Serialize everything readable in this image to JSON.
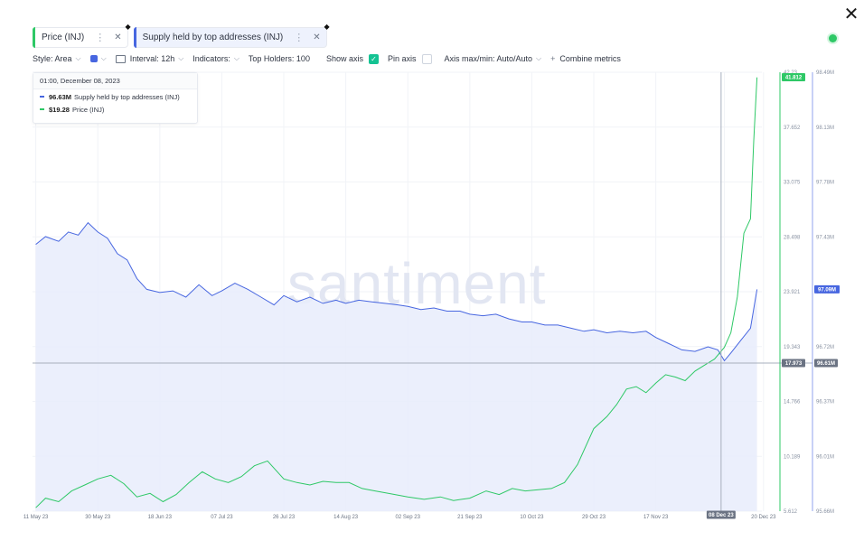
{
  "header": {
    "close_icon": "close-icon",
    "status_color": "#2ec866"
  },
  "metrics": [
    {
      "label": "Price (INJ)",
      "color": "#2ec866"
    },
    {
      "label": "Supply held by top addresses (INJ)",
      "color": "#4766e0"
    }
  ],
  "toolbar": {
    "style_label": "Style: Area",
    "color_swatch": "#4766e0",
    "interval_label": "Interval: 12h",
    "indicators_label": "Indicators:",
    "top_holders_label": "Top Holders: 100",
    "show_axis_label": "Show axis",
    "show_axis_checked": true,
    "pin_axis_label": "Pin axis",
    "pin_axis_checked": false,
    "axis_maxmin_label": "Axis max/min: Auto/Auto",
    "combine_label": "Combine metrics"
  },
  "tooltip": {
    "date": "01:00, December 08, 2023",
    "rows": [
      {
        "value": "96.63M",
        "name": "Supply held by top addresses (INJ)",
        "color": "#4766e0"
      },
      {
        "value": "$19.28",
        "name": "Price (INJ)",
        "color": "#2ec866"
      }
    ]
  },
  "watermark": "santiment",
  "chart_data": {
    "type": "line",
    "x_tick_labels": [
      "11 May 23",
      "30 May 23",
      "18 Jun 23",
      "07 Jul 23",
      "26 Jul 23",
      "14 Aug 23",
      "02 Sep 23",
      "21 Sep 23",
      "10 Oct 23",
      "29 Oct 23",
      "17 Nov 23",
      "08 Dec 23",
      "20 Dec 23"
    ],
    "series": [
      {
        "name": "Supply held by top addresses (INJ)",
        "axis": "right",
        "style": "area",
        "color": "#4766e0",
        "fill": "#e8ecfb",
        "y_ticks": [
          "98.49M",
          "98.13M",
          "97.78M",
          "97.43M",
          "97.09M",
          "96.72M",
          "96.37M",
          "96.01M",
          "95.66M"
        ],
        "ylim": [
          95.66,
          98.49
        ],
        "current_value_label": "97.09M",
        "x": [
          "2023-05-11",
          "2023-05-14",
          "2023-05-18",
          "2023-05-21",
          "2023-05-24",
          "2023-05-27",
          "2023-05-30",
          "2023-06-02",
          "2023-06-05",
          "2023-06-08",
          "2023-06-11",
          "2023-06-14",
          "2023-06-18",
          "2023-06-22",
          "2023-06-26",
          "2023-06-30",
          "2023-07-04",
          "2023-07-07",
          "2023-07-11",
          "2023-07-15",
          "2023-07-19",
          "2023-07-23",
          "2023-07-26",
          "2023-07-30",
          "2023-08-03",
          "2023-08-07",
          "2023-08-11",
          "2023-08-14",
          "2023-08-18",
          "2023-08-22",
          "2023-08-26",
          "2023-08-30",
          "2023-09-02",
          "2023-09-06",
          "2023-09-10",
          "2023-09-14",
          "2023-09-18",
          "2023-09-21",
          "2023-09-25",
          "2023-09-29",
          "2023-10-03",
          "2023-10-07",
          "2023-10-10",
          "2023-10-14",
          "2023-10-18",
          "2023-10-22",
          "2023-10-26",
          "2023-10-29",
          "2023-11-02",
          "2023-11-06",
          "2023-11-10",
          "2023-11-14",
          "2023-11-17",
          "2023-11-21",
          "2023-11-25",
          "2023-11-29",
          "2023-12-03",
          "2023-12-06",
          "2023-12-08",
          "2023-12-10",
          "2023-12-13",
          "2023-12-16",
          "2023-12-18"
        ],
        "values": [
          97.38,
          97.43,
          97.4,
          97.46,
          97.44,
          97.52,
          97.46,
          97.42,
          97.32,
          97.28,
          97.16,
          97.09,
          97.07,
          97.08,
          97.04,
          97.12,
          97.05,
          97.08,
          97.13,
          97.09,
          97.04,
          96.99,
          97.05,
          97.01,
          97.04,
          97.0,
          97.02,
          97.0,
          97.02,
          97.01,
          97.0,
          96.99,
          96.98,
          96.96,
          96.97,
          96.95,
          96.95,
          96.93,
          96.92,
          96.93,
          96.9,
          96.88,
          96.88,
          96.86,
          96.86,
          96.84,
          96.82,
          96.83,
          96.81,
          96.82,
          96.81,
          96.82,
          96.78,
          96.74,
          96.7,
          96.69,
          96.72,
          96.7,
          96.63,
          96.68,
          96.76,
          96.84,
          97.09
        ]
      },
      {
        "name": "Price (INJ)",
        "axis": "left-inner",
        "style": "line",
        "color": "#2ec866",
        "y_ticks": [
          "42.23",
          "37.652",
          "33.075",
          "28.498",
          "23.921",
          "19.343",
          "14.766",
          "10.189",
          "5.612"
        ],
        "ylim": [
          5.612,
          42.23
        ],
        "current_value_label": "41.812",
        "crosshair_value_label": "17.973",
        "x": [
          "2023-05-11",
          "2023-05-14",
          "2023-05-18",
          "2023-05-22",
          "2023-05-26",
          "2023-05-30",
          "2023-06-03",
          "2023-06-07",
          "2023-06-11",
          "2023-06-15",
          "2023-06-19",
          "2023-06-23",
          "2023-06-27",
          "2023-07-01",
          "2023-07-05",
          "2023-07-09",
          "2023-07-13",
          "2023-07-17",
          "2023-07-21",
          "2023-07-26",
          "2023-07-30",
          "2023-08-03",
          "2023-08-07",
          "2023-08-11",
          "2023-08-15",
          "2023-08-19",
          "2023-08-23",
          "2023-08-27",
          "2023-09-02",
          "2023-09-07",
          "2023-09-12",
          "2023-09-16",
          "2023-09-21",
          "2023-09-26",
          "2023-09-30",
          "2023-10-04",
          "2023-10-08",
          "2023-10-12",
          "2023-10-16",
          "2023-10-20",
          "2023-10-24",
          "2023-10-29",
          "2023-11-02",
          "2023-11-05",
          "2023-11-08",
          "2023-11-11",
          "2023-11-14",
          "2023-11-17",
          "2023-11-20",
          "2023-11-23",
          "2023-11-26",
          "2023-11-29",
          "2023-12-02",
          "2023-12-05",
          "2023-12-08",
          "2023-12-10",
          "2023-12-12",
          "2023-12-14",
          "2023-12-16",
          "2023-12-17",
          "2023-12-18"
        ],
        "values": [
          5.9,
          6.7,
          6.4,
          7.3,
          7.8,
          8.3,
          8.6,
          7.9,
          6.8,
          7.1,
          6.4,
          7.0,
          8.0,
          8.9,
          8.3,
          8.0,
          8.5,
          9.4,
          9.8,
          8.3,
          8.0,
          7.8,
          8.1,
          8.0,
          8.0,
          7.5,
          7.3,
          7.1,
          6.8,
          6.6,
          6.8,
          6.5,
          6.7,
          7.3,
          7.0,
          7.5,
          7.3,
          7.4,
          7.5,
          8.0,
          9.5,
          12.5,
          13.5,
          14.5,
          15.8,
          16.0,
          15.5,
          16.3,
          17.0,
          16.8,
          16.5,
          17.3,
          17.8,
          18.3,
          19.28,
          20.5,
          23.5,
          28.8,
          30.0,
          36.5,
          41.8
        ]
      }
    ],
    "crosshair_x_label": "08 Dec 23"
  }
}
